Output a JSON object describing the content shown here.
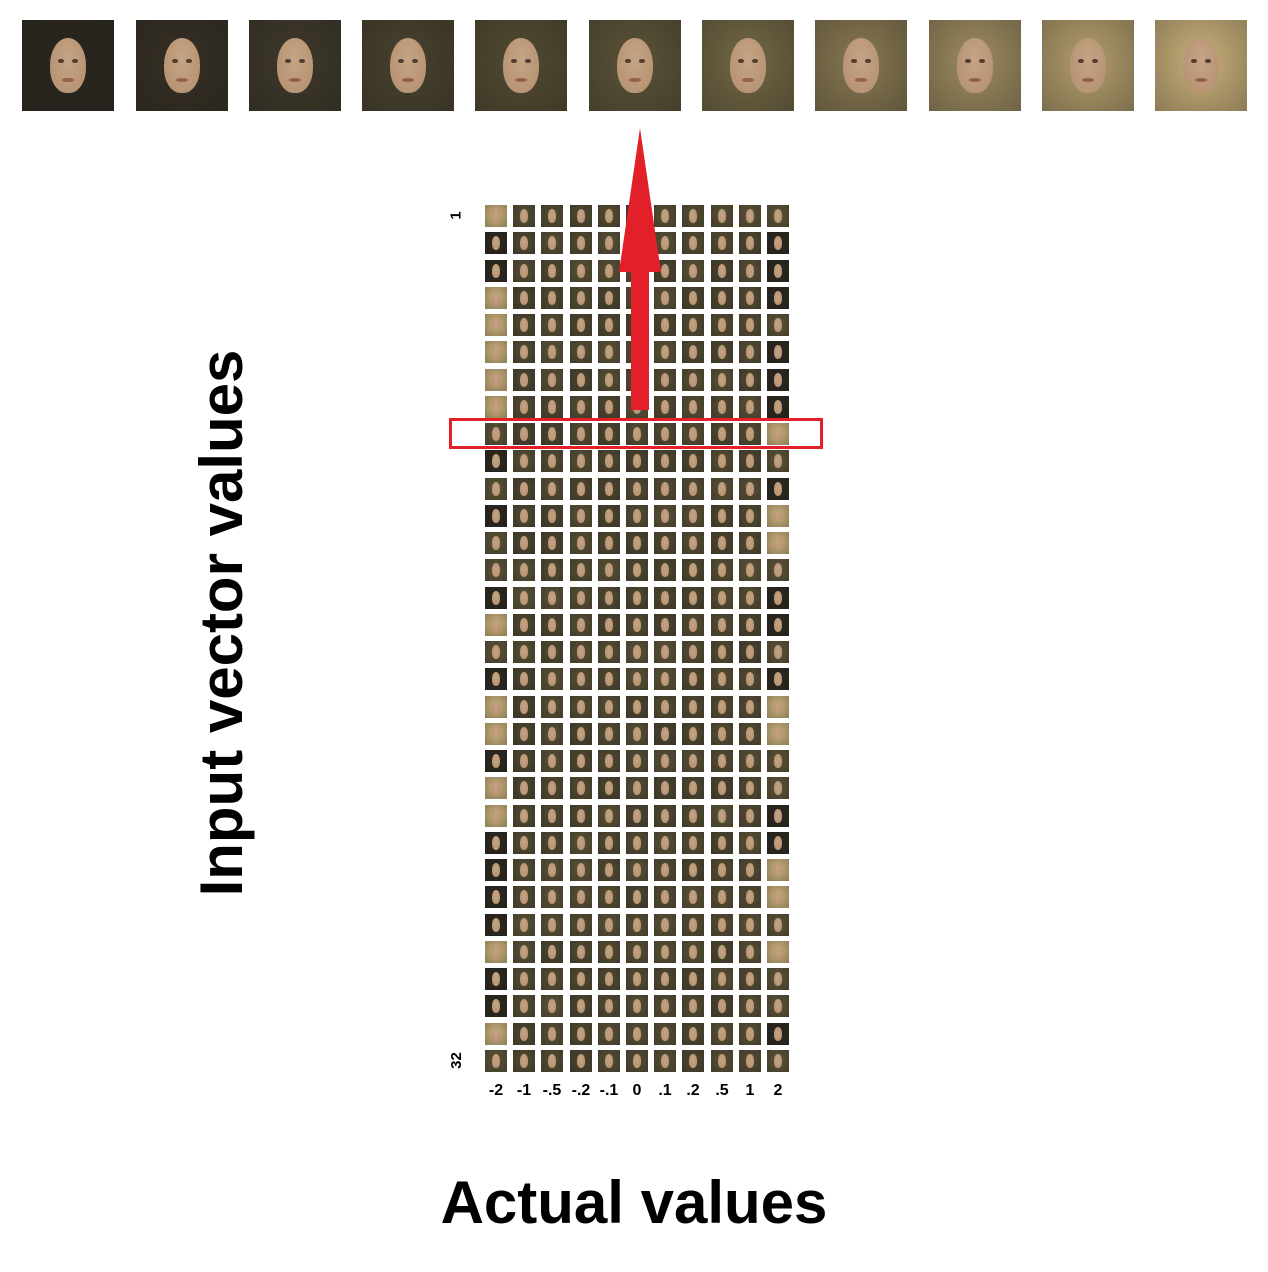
{
  "x_axis": {
    "label": "Actual values",
    "ticks": [
      "-2",
      "-1",
      "-.5",
      "-.2",
      "-.1",
      "0",
      ".1",
      ".2",
      ".5",
      "1",
      "2"
    ]
  },
  "y_axis": {
    "label": "Input vector values",
    "first_tick": "1",
    "last_tick": "32"
  },
  "grid": {
    "rows": 32,
    "columns": 11,
    "highlighted_row": 9
  },
  "top_strip": {
    "count": 11,
    "source_row": 9
  },
  "colors": {
    "highlight": "#e3202a",
    "arrow": "#e3202a",
    "face_hair_dark": "#2b2620",
    "face_hair_olive": "#5b5338",
    "face_hair_blond": "#c9b07a",
    "face_skin": "#b89574"
  }
}
